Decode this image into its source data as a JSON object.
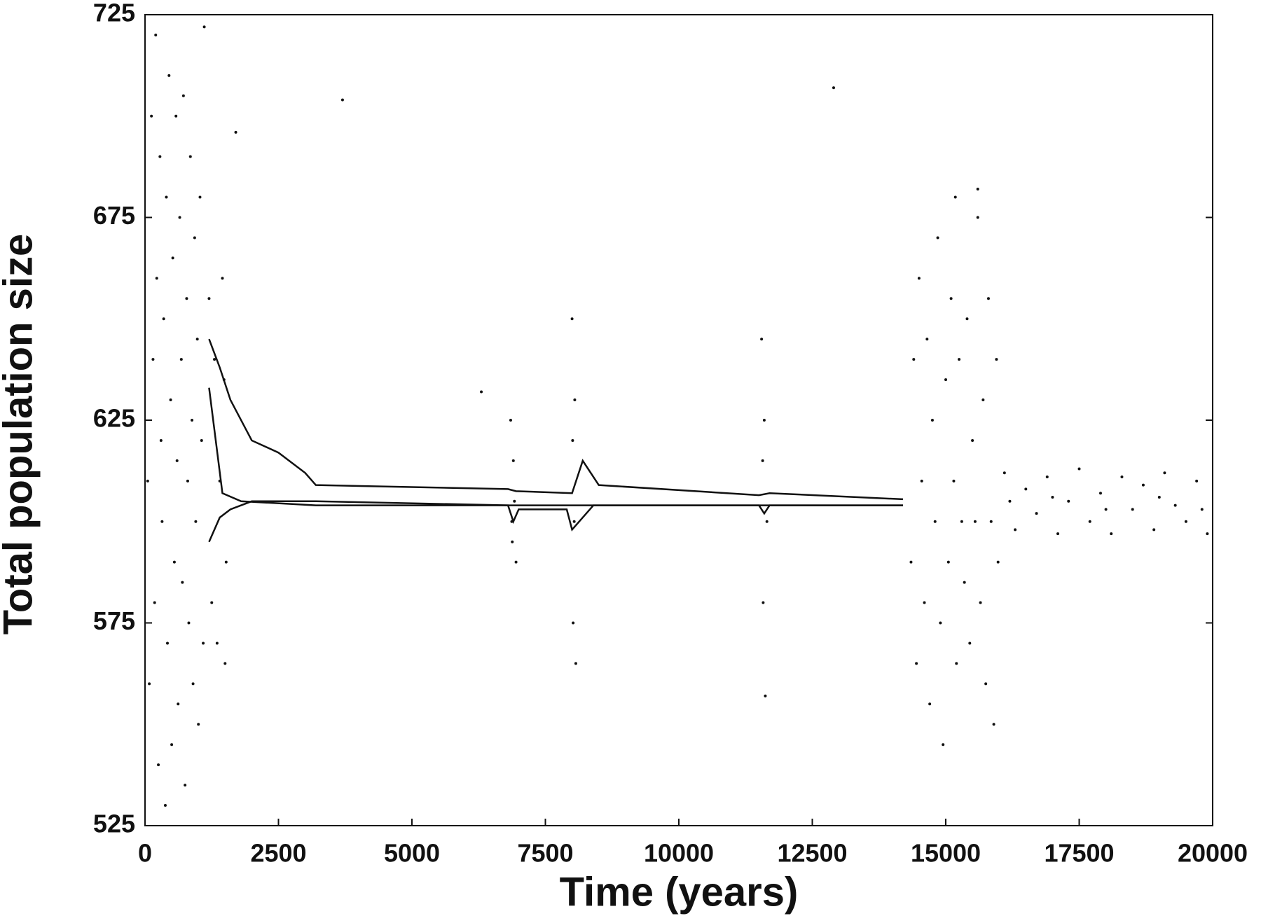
{
  "chart_data": {
    "type": "scatter",
    "x_label": "Time (years)",
    "y_label": "Total population size",
    "xlim": [
      0,
      20000
    ],
    "xticks": [
      0,
      2500,
      5000,
      7500,
      10000,
      12500,
      15000,
      17500,
      20000
    ],
    "ylim": [
      525,
      725
    ],
    "yticks": [
      525,
      575,
      625,
      675,
      725
    ],
    "series": [
      {
        "color": "#111111",
        "style": "dots",
        "x": [
          50,
          80,
          120,
          150,
          180,
          200,
          220,
          250,
          280,
          300,
          320,
          350,
          380,
          400,
          420,
          450,
          480,
          500,
          520,
          550,
          580,
          600,
          620,
          650,
          680,
          700,
          720,
          750,
          780,
          800,
          820,
          850,
          880,
          900,
          930,
          950,
          980,
          1000,
          1030,
          1060,
          1090,
          1110,
          1200,
          1250,
          1300,
          1350,
          1400,
          1450,
          1500,
          1520,
          1480,
          6850,
          6880,
          6900,
          6920,
          6950,
          6870,
          8000,
          8020,
          8050,
          8070,
          8040,
          8010,
          11550,
          11580,
          11600,
          11620,
          11650,
          11570,
          14350,
          14400,
          14450,
          14500,
          14550,
          14600,
          14650,
          14700,
          14750,
          14800,
          14850,
          14900,
          14950,
          15000,
          15050,
          15100,
          15150,
          15200,
          15250,
          15300,
          15350,
          15400,
          15450,
          15500,
          15550,
          15600,
          15650,
          15700,
          15750,
          15800,
          15850,
          15900,
          15950,
          15980,
          15180,
          15600,
          16100,
          16300,
          16500,
          16700,
          16900,
          17100,
          17300,
          17500,
          17700,
          17900,
          18100,
          18300,
          18500,
          18700,
          18900,
          19100,
          19300,
          19500,
          19700,
          19900,
          16200,
          17000,
          18000,
          19000,
          19800,
          6300,
          3700,
          12900,
          1700
        ],
        "values": [
          610,
          560,
          700,
          640,
          580,
          720,
          660,
          540,
          690,
          620,
          600,
          650,
          530,
          680,
          570,
          710,
          630,
          545,
          665,
          590,
          700,
          615,
          555,
          675,
          640,
          585,
          705,
          535,
          655,
          610,
          575,
          690,
          625,
          560,
          670,
          600,
          645,
          550,
          680,
          620,
          570,
          722,
          655,
          580,
          640,
          570,
          610,
          660,
          565,
          590,
          635,
          625,
          595,
          615,
          605,
          590,
          600,
          650,
          575,
          630,
          565,
          600,
          620,
          645,
          580,
          625,
          557,
          600,
          615,
          590,
          640,
          565,
          660,
          610,
          580,
          645,
          555,
          625,
          600,
          670,
          575,
          545,
          635,
          590,
          655,
          610,
          565,
          640,
          600,
          585,
          650,
          570,
          620,
          600,
          675,
          580,
          630,
          560,
          655,
          600,
          550,
          640,
          590,
          680,
          682,
          612,
          598,
          608,
          602,
          611,
          597,
          605,
          613,
          600,
          607,
          597,
          611,
          603,
          609,
          598,
          612,
          604,
          600,
          610,
          597,
          605,
          606,
          603,
          606,
          603,
          632,
          704,
          707,
          696
        ]
      },
      {
        "color": "#111111",
        "style": "line",
        "x": [
          1200,
          1400,
          1600,
          2000,
          2500,
          3000,
          3200,
          6800,
          6950,
          8000,
          8200,
          8500,
          11500,
          11700,
          14200
        ],
        "values": [
          645,
          638,
          630,
          620,
          617,
          612,
          609,
          608,
          607.5,
          607,
          615,
          609,
          606.5,
          607,
          605.5
        ]
      },
      {
        "color": "#111111",
        "style": "line",
        "x": [
          1200,
          1450,
          1800,
          3200,
          6900,
          8000,
          11500,
          14200
        ],
        "values": [
          633,
          607,
          605,
          604,
          604,
          604,
          604,
          604
        ]
      },
      {
        "color": "#111111",
        "style": "line",
        "x": [
          1200,
          1400,
          1600,
          2000,
          3200,
          6800,
          6900,
          7000,
          7900,
          8000,
          8400,
          11500,
          11600,
          11700,
          14200
        ],
        "values": [
          595,
          601,
          603,
          605,
          605,
          604,
          600,
          603,
          603,
          598,
          604,
          604,
          602,
          604,
          604
        ]
      }
    ]
  }
}
